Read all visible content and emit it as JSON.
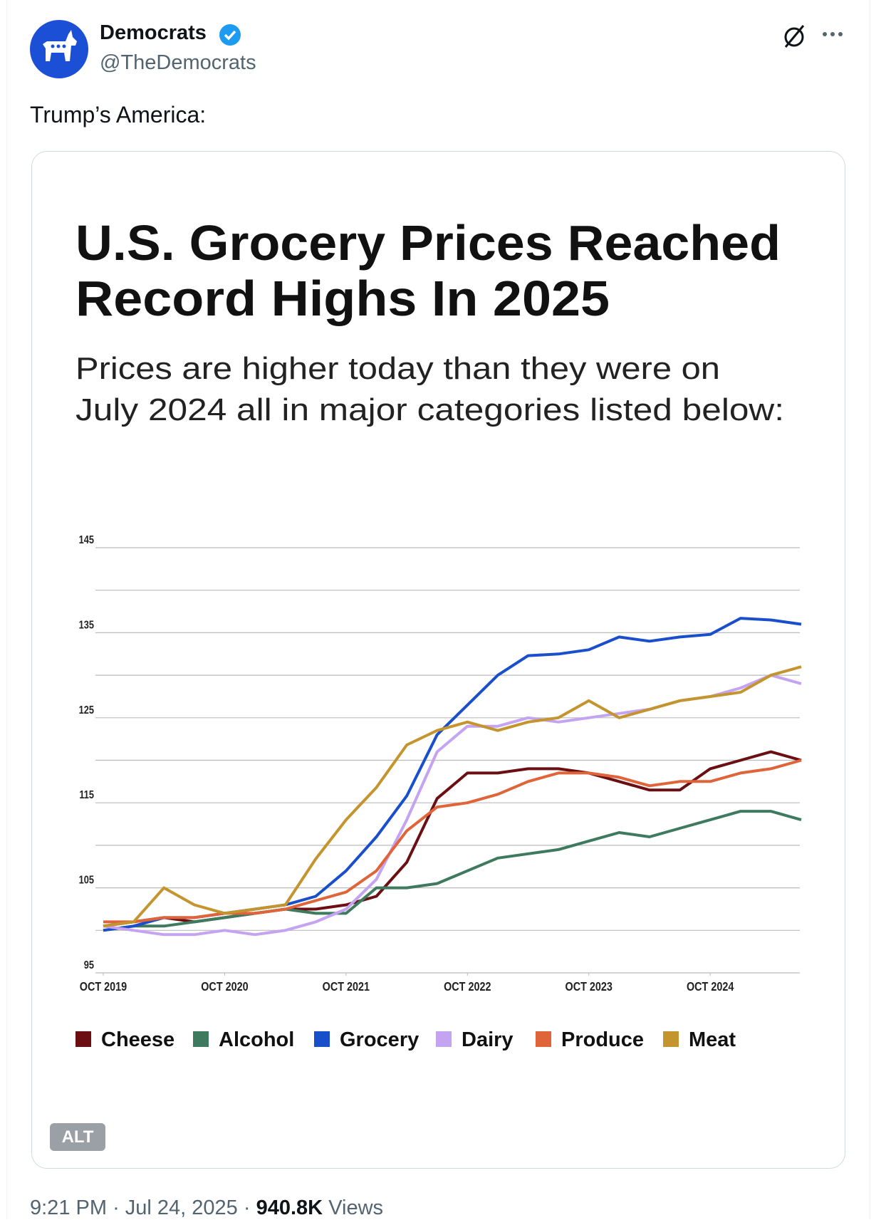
{
  "tweet": {
    "name": "Democrats",
    "handle": "@TheDemocrats",
    "text": "Trump’s America:",
    "alt_badge": "ALT",
    "time": "9:21 PM",
    "separator": "·",
    "date": "Jul 24, 2025",
    "views": "940.8K",
    "views_label": "Views"
  },
  "chart_data": {
    "type": "line",
    "title_lines": [
      "U.S. Grocery Prices Reached",
      "Record Highs In 2025"
    ],
    "subtitle_lines": [
      "Prices are higher today than they were on",
      "July 2024 all in major categories listed below:"
    ],
    "x": [
      "2019-10",
      "2020-01",
      "2020-04",
      "2020-07",
      "2020-10",
      "2021-01",
      "2021-04",
      "2021-07",
      "2021-10",
      "2022-01",
      "2022-04",
      "2022-07",
      "2022-10",
      "2023-01",
      "2023-04",
      "2023-07",
      "2023-10",
      "2024-01",
      "2024-04",
      "2024-07",
      "2024-10",
      "2025-01",
      "2025-04",
      "2025-07"
    ],
    "xlim": [
      "2019-10",
      "2025-07"
    ],
    "xticks": [
      {
        "value": "2019-10",
        "label": "OCT 2019"
      },
      {
        "value": "2020-10",
        "label": "OCT 2020"
      },
      {
        "value": "2021-10",
        "label": "OCT 2021"
      },
      {
        "value": "2022-10",
        "label": "OCT 2022"
      },
      {
        "value": "2023-10",
        "label": "OCT 2023"
      },
      {
        "value": "2024-10",
        "label": "OCT 2024"
      }
    ],
    "ylim": [
      95,
      145
    ],
    "yticks": [
      95,
      105,
      115,
      125,
      135,
      145
    ],
    "minor_yticks": [
      100,
      110,
      120,
      130,
      140
    ],
    "grid": true,
    "legend": "bottom",
    "series": [
      {
        "name": "Cheese",
        "color": "#6b0f12",
        "values": [
          100.5,
          101,
          101.5,
          101,
          101.5,
          102,
          102.5,
          102.5,
          103,
          104,
          108,
          115.5,
          118.5,
          118.5,
          119,
          119,
          118.5,
          117.5,
          116.5,
          116.5,
          119,
          120,
          121,
          120
        ]
      },
      {
        "name": "Alcohol",
        "color": "#3d7a5e",
        "values": [
          100,
          100.5,
          100.5,
          101,
          101.5,
          102,
          102.5,
          102,
          102,
          105,
          105,
          105.5,
          107,
          108.5,
          109,
          109.5,
          110.5,
          111.5,
          111,
          112,
          113,
          114,
          114,
          113
        ]
      },
      {
        "name": "Grocery",
        "color": "#1a4fcc",
        "values": [
          100,
          100.5,
          101.5,
          101.5,
          102,
          102.5,
          103,
          104,
          107,
          111,
          115.8,
          123,
          126.5,
          130,
          132.3,
          132.5,
          133,
          134.5,
          134,
          134.5,
          134.8,
          136.7,
          136.5,
          136
        ]
      },
      {
        "name": "Dairy",
        "color": "#c4a3f0",
        "values": [
          100.5,
          100,
          99.5,
          99.5,
          100,
          99.5,
          100,
          101,
          102.5,
          106,
          113,
          121,
          124,
          124,
          125,
          124.5,
          125,
          125.5,
          126,
          127,
          127.5,
          128.5,
          130,
          129
        ]
      },
      {
        "name": "Produce",
        "color": "#e0643a",
        "values": [
          101,
          101,
          101.5,
          101.5,
          102,
          102,
          102.5,
          103.5,
          104.5,
          107,
          111.7,
          114.5,
          115,
          116,
          117.5,
          118.5,
          118.5,
          118,
          117,
          117.5,
          117.5,
          118.5,
          119,
          120
        ]
      },
      {
        "name": "Meat",
        "color": "#c4952e",
        "values": [
          100.5,
          101,
          105,
          103,
          102,
          102.5,
          103,
          108.4,
          113,
          116.8,
          121.8,
          123.5,
          124.5,
          123.5,
          124.5,
          125,
          127,
          125,
          126,
          127,
          127.5,
          128,
          130,
          131
        ]
      }
    ]
  }
}
